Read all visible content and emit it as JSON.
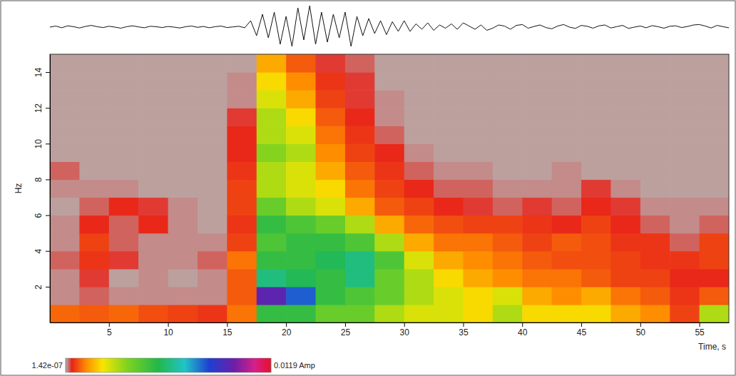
{
  "chart_data": {
    "type": "spectrogram",
    "x_label": "Time, s",
    "y_label": "Hz",
    "xlim": [
      0,
      57.5
    ],
    "xticks": [
      5,
      10,
      15,
      20,
      25,
      30,
      35,
      40,
      45,
      50,
      55
    ],
    "ylim": [
      0,
      15
    ],
    "yticks": [
      2,
      4,
      6,
      8,
      10,
      12,
      14
    ],
    "grid": false,
    "x_edges": [
      0,
      2.5,
      5,
      7.5,
      10,
      12.5,
      15,
      17.5,
      20,
      22.5,
      25,
      27.5,
      30,
      32.5,
      35,
      37.5,
      40,
      42.5,
      45,
      47.5,
      50,
      52.5,
      55,
      57.5
    ],
    "y_edges": [
      0,
      1,
      2,
      3,
      4,
      5,
      6,
      7,
      8,
      9,
      10,
      11,
      12,
      13,
      14,
      15
    ],
    "z": [
      [
        0.0009,
        0.0008,
        0.0009,
        0.0007,
        0.0006,
        0.0005,
        0.001,
        0.005,
        0.005,
        0.004,
        0.004,
        0.003,
        0.0025,
        0.0025,
        0.002,
        0.003,
        0.002,
        0.002,
        0.002,
        0.0015,
        0.0012,
        0.0006,
        0.003
      ],
      [
        0.0001,
        0.0002,
        0.0001,
        0.0001,
        0.0001,
        0.0001,
        0.0008,
        0.0095,
        0.008,
        0.005,
        0.0045,
        0.004,
        0.003,
        0.0025,
        0.002,
        0.0025,
        0.0015,
        0.0012,
        0.0015,
        0.001,
        0.0008,
        0.0005,
        0.0008
      ],
      [
        0.0001,
        0.0003,
        5e-05,
        0.0001,
        5e-05,
        0.0001,
        0.0008,
        0.006,
        0.0055,
        0.005,
        0.006,
        0.004,
        0.003,
        0.002,
        0.0015,
        0.0012,
        0.001,
        0.001,
        0.0008,
        0.0006,
        0.0006,
        0.0004,
        0.0004
      ],
      [
        0.0002,
        0.0005,
        0.0003,
        0.0001,
        0.0001,
        0.0002,
        0.001,
        0.005,
        0.005,
        0.0055,
        0.006,
        0.0045,
        0.0025,
        0.0015,
        0.0012,
        0.001,
        0.0008,
        0.0007,
        0.0007,
        0.0006,
        0.0005,
        0.0005,
        0.0006
      ],
      [
        0.0001,
        0.0006,
        0.0002,
        0.0001,
        0.0001,
        0.0001,
        0.0006,
        0.0045,
        0.005,
        0.005,
        0.0045,
        0.003,
        0.0015,
        0.001,
        0.001,
        0.0008,
        0.0006,
        0.0008,
        0.0007,
        0.0005,
        0.0005,
        0.0002,
        0.0006
      ],
      [
        0.0001,
        0.0004,
        0.0002,
        0.0004,
        0.0001,
        5e-05,
        0.0005,
        0.005,
        0.0045,
        0.004,
        0.003,
        0.0015,
        0.0009,
        0.0007,
        0.0006,
        0.0006,
        0.0005,
        0.0004,
        0.0006,
        0.0004,
        0.0002,
        0.0001,
        0.0002
      ],
      [
        5e-05,
        0.0002,
        0.0004,
        0.0003,
        0.0001,
        5e-05,
        0.0006,
        0.004,
        0.003,
        0.0025,
        0.0015,
        0.0008,
        0.0006,
        0.0004,
        0.0003,
        0.0002,
        0.0003,
        0.0002,
        0.0004,
        0.0003,
        0.0001,
        0.0001,
        0.0001
      ],
      [
        0.0001,
        0.0001,
        0.0001,
        5e-05,
        5e-05,
        5e-05,
        0.0006,
        0.003,
        0.0025,
        0.002,
        0.001,
        0.0006,
        0.0004,
        0.0002,
        0.0002,
        0.0001,
        0.0001,
        0.0001,
        0.0003,
        0.0001,
        5e-05,
        5e-05,
        5e-05
      ],
      [
        0.0002,
        5e-05,
        5e-05,
        5e-05,
        5e-05,
        5e-05,
        0.0005,
        0.003,
        0.0025,
        0.0015,
        0.0008,
        0.0005,
        0.0002,
        0.0001,
        0.0001,
        5e-05,
        5e-05,
        0.0001,
        5e-05,
        5e-05,
        5e-05,
        5e-05,
        5e-05
      ],
      [
        5e-05,
        5e-05,
        5e-05,
        5e-05,
        5e-05,
        5e-05,
        0.0004,
        0.0035,
        0.003,
        0.0012,
        0.0006,
        0.0004,
        0.0001,
        5e-05,
        5e-05,
        5e-05,
        5e-05,
        5e-05,
        5e-05,
        5e-05,
        5e-05,
        5e-05,
        5e-05
      ],
      [
        5e-05,
        5e-05,
        5e-05,
        5e-05,
        5e-05,
        5e-05,
        0.0004,
        0.003,
        0.0025,
        0.001,
        0.0005,
        0.0002,
        5e-05,
        5e-05,
        5e-05,
        5e-05,
        5e-05,
        5e-05,
        5e-05,
        5e-05,
        5e-05,
        5e-05,
        5e-05
      ],
      [
        5e-05,
        5e-05,
        5e-05,
        5e-05,
        5e-05,
        5e-05,
        0.0003,
        0.003,
        0.002,
        0.0008,
        0.0004,
        0.0001,
        5e-05,
        5e-05,
        5e-05,
        5e-05,
        5e-05,
        5e-05,
        5e-05,
        5e-05,
        5e-05,
        5e-05,
        5e-05
      ],
      [
        5e-05,
        5e-05,
        5e-05,
        5e-05,
        5e-05,
        5e-05,
        0.0001,
        0.0025,
        0.0015,
        0.0006,
        0.0003,
        0.0001,
        5e-05,
        5e-05,
        5e-05,
        5e-05,
        5e-05,
        5e-05,
        5e-05,
        5e-05,
        5e-05,
        5e-05,
        5e-05
      ],
      [
        5e-05,
        5e-05,
        5e-05,
        5e-05,
        5e-05,
        5e-05,
        0.0001,
        0.002,
        0.0012,
        0.0005,
        0.0003,
        5e-05,
        5e-05,
        5e-05,
        5e-05,
        5e-05,
        5e-05,
        5e-05,
        5e-05,
        5e-05,
        5e-05,
        5e-05,
        5e-05
      ],
      [
        5e-05,
        5e-05,
        5e-05,
        5e-05,
        5e-05,
        5e-05,
        5e-05,
        0.0015,
        0.0008,
        0.0003,
        0.0002,
        5e-05,
        5e-05,
        5e-05,
        5e-05,
        5e-05,
        5e-05,
        5e-05,
        5e-05,
        5e-05,
        5e-05,
        5e-05,
        5e-05
      ]
    ],
    "colorbar": {
      "range": [
        1.42e-07,
        0.0119
      ],
      "ticks": [
        {
          "value": 1.42e-07,
          "label": "1.42e-07"
        },
        {
          "value": 0.0119,
          "label": "0.0119 Amp"
        }
      ]
    },
    "trace": {
      "ylim": [
        -1,
        1
      ],
      "x": [
        0,
        0.5,
        1,
        1.5,
        2,
        2.5,
        3,
        3.5,
        4,
        4.5,
        5,
        5.5,
        6,
        6.5,
        7,
        7.5,
        8,
        8.5,
        9,
        9.5,
        10,
        10.5,
        11,
        11.5,
        12,
        12.5,
        13,
        13.5,
        14,
        14.5,
        15,
        15.5,
        16,
        16.5,
        17,
        17.5,
        18,
        18.5,
        19,
        19.5,
        20,
        20.5,
        21,
        21.5,
        22,
        22.5,
        23,
        23.5,
        24,
        24.5,
        25,
        25.5,
        26,
        26.5,
        27,
        27.5,
        28,
        28.5,
        29,
        29.5,
        30,
        30.5,
        31,
        31.5,
        32,
        32.5,
        33,
        33.5,
        34,
        34.5,
        35,
        35.5,
        36,
        36.5,
        37,
        37.5,
        38,
        38.5,
        39,
        39.5,
        40,
        40.5,
        41,
        41.5,
        42,
        42.5,
        43,
        43.5,
        44,
        44.5,
        45,
        45.5,
        46,
        46.5,
        47,
        47.5,
        48,
        48.5,
        49,
        49.5,
        50,
        50.5,
        51,
        51.5,
        52,
        52.5,
        53,
        53.5,
        54,
        54.5,
        55,
        55.5,
        56,
        56.5,
        57,
        57.5
      ],
      "values": [
        0,
        0.05,
        -0.03,
        0.06,
        0.02,
        -0.04,
        0.03,
        0.08,
        0.02,
        -0.02,
        0.04,
        0.0,
        -0.05,
        0.02,
        0.06,
        0.01,
        -0.03,
        0.04,
        0.02,
        -0.02,
        0.03,
        0.0,
        -0.04,
        0.02,
        0.05,
        -0.01,
        0.03,
        -0.03,
        0.02,
        0.05,
        -0.02,
        0.01,
        0.04,
        -0.03,
        0.3,
        -0.4,
        0.6,
        -0.5,
        0.7,
        -0.8,
        0.5,
        -0.9,
        0.9,
        -0.6,
        1.0,
        -0.8,
        0.7,
        -0.7,
        0.6,
        -0.5,
        0.7,
        -0.9,
        0.5,
        -0.4,
        0.4,
        -0.3,
        0.3,
        -0.35,
        0.25,
        -0.2,
        0.3,
        -0.2,
        0.15,
        -0.1,
        0.2,
        -0.15,
        0.1,
        -0.05,
        0.15,
        -0.1,
        0.2,
        0.05,
        -0.1,
        0.1,
        -0.15,
        -0.05,
        0.1,
        0.05,
        -0.1,
        0.08,
        0.12,
        -0.05,
        0.03,
        0.1,
        -0.02,
        -0.08,
        0.05,
        0.12,
        0.0,
        -0.06,
        0.08,
        0.04,
        -0.05,
        0.06,
        0.1,
        -0.04,
        0.02,
        0.08,
        -0.06,
        0.0,
        0.05,
        -0.03,
        0.07,
        0.02,
        -0.05,
        0.04,
        0.06,
        -0.02,
        0.03,
        0.1,
        0.12,
        0.05,
        -0.04,
        0.08,
        0.02,
        -0.03
      ]
    }
  }
}
